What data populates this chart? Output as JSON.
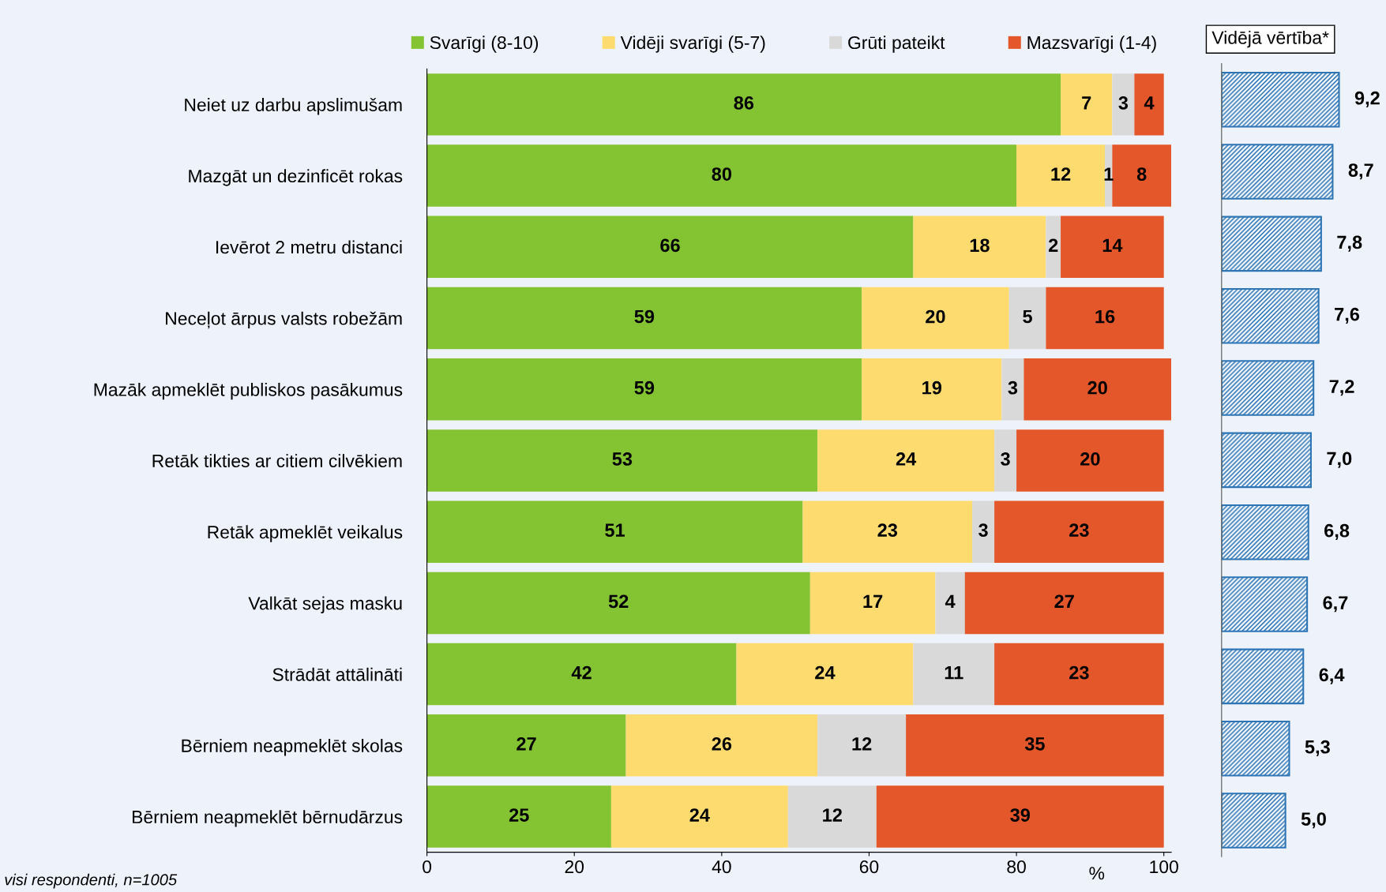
{
  "chart_data": [
    {
      "type": "bar",
      "orientation": "horizontal",
      "stacked": true,
      "data_labels": true,
      "legend": "top",
      "xlabel": "%",
      "xlim": [
        0,
        101
      ],
      "xticks": [
        0,
        20,
        40,
        60,
        80,
        100
      ],
      "grid": false,
      "categories": [
        "Neiet uz darbu apslimušam",
        "Mazgāt un dezinficēt rokas",
        "Ievērot 2 metru distanci",
        "Neceļot ārpus valsts robežām",
        "Mazāk apmeklēt publiskos pasākumus",
        "Retāk tikties ar citiem cilvēkiem",
        "Retāk apmeklēt veikalus",
        "Valkāt sejas masku",
        "Strādāt attālināti",
        "Bērniem neapmeklēt skolas",
        "Bērniem neapmeklēt bērnudārzus"
      ],
      "series": [
        {
          "name": "Svarīgi (8-10)",
          "color": "#84c332",
          "values": [
            86,
            80,
            66,
            59,
            59,
            53,
            51,
            52,
            42,
            27,
            25
          ]
        },
        {
          "name": "Vidēji svarīgi (5-7)",
          "color": "#fedb6f",
          "values": [
            7,
            12,
            18,
            20,
            19,
            24,
            23,
            17,
            24,
            26,
            24
          ]
        },
        {
          "name": "Grūti pateikt",
          "color": "#d9d9d9",
          "values": [
            3,
            1,
            2,
            5,
            3,
            3,
            3,
            4,
            11,
            12,
            12
          ]
        },
        {
          "name": "Mazsvarīgi (1-4)",
          "color": "#e4572a",
          "values": [
            4,
            8,
            14,
            16,
            20,
            20,
            23,
            27,
            23,
            35,
            39
          ]
        }
      ],
      "annotations": [
        "visi respondenti, n=1005"
      ]
    },
    {
      "type": "bar",
      "orientation": "horizontal",
      "title": "Vidējā vērtība*",
      "color": "#2e75b6",
      "tick_labels": false,
      "categories": [
        null,
        null,
        null,
        null,
        null,
        null,
        null,
        null,
        null,
        null,
        null
      ],
      "values": [
        9.2,
        8.7,
        7.8,
        7.6,
        7.2,
        7.0,
        6.8,
        6.7,
        6.4,
        5.3,
        5.0
      ],
      "value_labels": [
        "9,2",
        "8,7",
        "7,8",
        "7,6",
        "7,2",
        "7,0",
        "6,8",
        "6,7",
        "6,4",
        "5,3",
        "5,0"
      ]
    }
  ]
}
